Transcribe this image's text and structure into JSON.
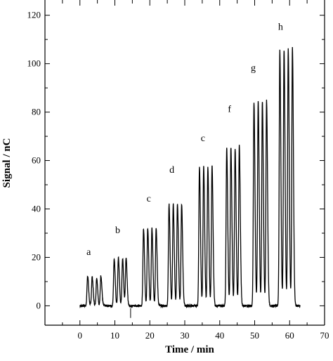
{
  "chart_data": {
    "type": "line",
    "title": "",
    "xlabel": "Time / min",
    "ylabel": "Signal / nC",
    "xlim": [
      -10,
      70
    ],
    "ylim": [
      -8,
      135
    ],
    "x_ticks": [
      0,
      10,
      20,
      30,
      40,
      50,
      60,
      70
    ],
    "y_ticks": [
      0,
      20,
      40,
      60,
      80,
      100,
      120
    ],
    "grid": false,
    "legend": "none",
    "series_color": "#000000",
    "peak_groups": [
      {
        "label": "a",
        "label_at": [
          2.5,
          21
        ],
        "peaks": [
          [
            2.2,
            12.5
          ],
          [
            3.5,
            12.0
          ],
          [
            4.8,
            11.5
          ],
          [
            6.0,
            12.5
          ]
        ]
      },
      {
        "label": "b",
        "label_at": [
          10.8,
          30
        ],
        "peaks": [
          [
            9.8,
            19.5
          ],
          [
            11.0,
            19.8
          ],
          [
            12.2,
            19.6
          ],
          [
            13.2,
            20.0
          ]
        ]
      },
      {
        "label": "c",
        "label_at": [
          19.7,
          43
        ],
        "peaks": [
          [
            18.2,
            32.0
          ],
          [
            19.4,
            32.2
          ],
          [
            20.6,
            32.0
          ],
          [
            21.8,
            32.4
          ]
        ]
      },
      {
        "label": "d",
        "label_at": [
          26.3,
          55
        ],
        "peaks": [
          [
            25.5,
            42.0
          ],
          [
            26.7,
            42.0
          ],
          [
            27.9,
            42.2
          ],
          [
            29.1,
            42.0
          ]
        ]
      },
      {
        "label": "c",
        "label_at": [
          35.2,
          68
        ],
        "peaks": [
          [
            34.2,
            57.0
          ],
          [
            35.4,
            57.5
          ],
          [
            36.6,
            57.2
          ],
          [
            37.8,
            58.0
          ]
        ]
      },
      {
        "label": "f",
        "label_at": [
          42.8,
          80
        ],
        "peaks": [
          [
            42.0,
            65.0
          ],
          [
            43.2,
            65.5
          ],
          [
            44.4,
            65.2
          ],
          [
            45.6,
            66.0
          ]
        ]
      },
      {
        "label": "g",
        "label_at": [
          49.6,
          97
        ],
        "peaks": [
          [
            49.8,
            84.0
          ],
          [
            51.0,
            84.5
          ],
          [
            52.2,
            84.2
          ],
          [
            53.4,
            84.8
          ]
        ]
      },
      {
        "label": "h",
        "label_at": [
          57.4,
          114
        ],
        "peaks": [
          [
            57.2,
            105.5
          ],
          [
            58.4,
            105.8
          ],
          [
            59.6,
            106.0
          ],
          [
            60.8,
            106.5
          ]
        ]
      }
    ]
  }
}
